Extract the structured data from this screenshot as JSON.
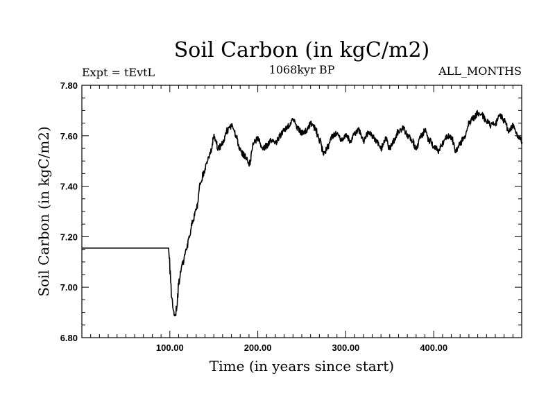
{
  "chart_data": {
    "type": "line",
    "title": "Soil Carbon (in kgC/m2)",
    "left_label": "Expt = tEvtL",
    "center_label": "1068kyr BP",
    "right_label": "ALL_MONTHS",
    "xlabel": "Time (in years since start)",
    "ylabel": "Soil Carbon (in kgC/m2)",
    "xlim": [
      0,
      500
    ],
    "ylim": [
      6.8,
      7.8
    ],
    "x_ticks": [
      {
        "value": 100,
        "label": "100.00"
      },
      {
        "value": 200,
        "label": "200.00"
      },
      {
        "value": 300,
        "label": "300.00"
      },
      {
        "value": 400,
        "label": "400.00"
      }
    ],
    "y_ticks": [
      {
        "value": 6.8,
        "label": "6.80"
      },
      {
        "value": 7.0,
        "label": "7.00"
      },
      {
        "value": 7.2,
        "label": "7.20"
      },
      {
        "value": 7.4,
        "label": "7.40"
      },
      {
        "value": 7.6,
        "label": "7.60"
      },
      {
        "value": 7.8,
        "label": "7.80"
      }
    ],
    "series": [
      {
        "name": "Soil Carbon",
        "x": [
          0,
          99,
          100,
          102,
          104,
          106,
          108,
          110,
          114,
          118,
          122,
          126,
          130,
          134,
          138,
          142,
          146,
          150,
          155,
          160,
          165,
          170,
          175,
          180,
          185,
          190,
          195,
          200,
          205,
          210,
          215,
          220,
          225,
          230,
          235,
          240,
          245,
          250,
          255,
          260,
          265,
          270,
          275,
          280,
          285,
          290,
          295,
          300,
          305,
          310,
          315,
          320,
          325,
          330,
          335,
          340,
          345,
          350,
          355,
          360,
          365,
          370,
          375,
          380,
          385,
          390,
          395,
          400,
          405,
          410,
          415,
          420,
          425,
          430,
          435,
          440,
          445,
          450,
          455,
          460,
          465,
          470,
          475,
          480,
          485,
          490,
          495,
          500
        ],
        "y": [
          7.155,
          7.155,
          7.06,
          6.96,
          6.9,
          6.88,
          6.93,
          7.02,
          7.09,
          7.14,
          7.2,
          7.26,
          7.31,
          7.4,
          7.45,
          7.49,
          7.54,
          7.6,
          7.55,
          7.57,
          7.62,
          7.64,
          7.6,
          7.54,
          7.52,
          7.49,
          7.57,
          7.59,
          7.55,
          7.56,
          7.58,
          7.57,
          7.6,
          7.62,
          7.64,
          7.66,
          7.63,
          7.61,
          7.62,
          7.65,
          7.63,
          7.58,
          7.53,
          7.56,
          7.6,
          7.61,
          7.58,
          7.6,
          7.58,
          7.61,
          7.62,
          7.58,
          7.61,
          7.6,
          7.58,
          7.55,
          7.59,
          7.55,
          7.58,
          7.62,
          7.63,
          7.6,
          7.58,
          7.55,
          7.6,
          7.62,
          7.58,
          7.56,
          7.54,
          7.57,
          7.6,
          7.59,
          7.54,
          7.57,
          7.6,
          7.65,
          7.67,
          7.69,
          7.68,
          7.66,
          7.64,
          7.65,
          7.68,
          7.66,
          7.62,
          7.64,
          7.6,
          7.58
        ]
      }
    ]
  }
}
